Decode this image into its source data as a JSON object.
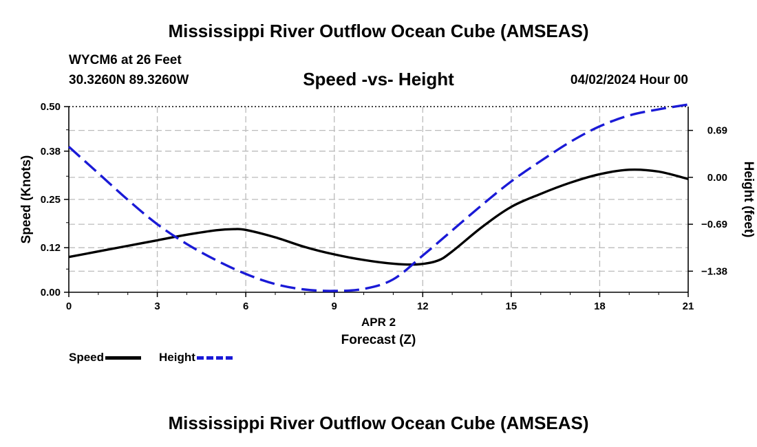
{
  "header": {
    "title": "Mississippi River Outflow Ocean Cube (AMSEAS)",
    "station": "WYCM6 at 26 Feet",
    "coords": "30.3260N  89.3260W",
    "subtitle": "Speed -vs- Height",
    "datetime": "04/02/2024 Hour 00"
  },
  "footer": {
    "title": "Mississippi River Outflow Ocean Cube (AMSEAS)"
  },
  "legend": {
    "items": [
      {
        "label": "Speed",
        "color": "#000000",
        "style": "solid"
      },
      {
        "label": "Height",
        "color": "#1a1ad6",
        "style": "dashed"
      }
    ]
  },
  "chart_data": {
    "type": "line",
    "title": "Speed -vs- Height",
    "xlabel": "Forecast (Z)",
    "xlabel_date": "APR 2",
    "ylabel_left": "Speed (Knots)",
    "ylabel_right": "Height (feet)",
    "xlim": [
      0,
      21
    ],
    "x_ticks": [
      "0",
      "3",
      "6",
      "9",
      "12",
      "15",
      "18",
      "21"
    ],
    "ylim_left": [
      0.0,
      0.5
    ],
    "y_ticks_left": [
      "0.00",
      "0.12",
      "0.25",
      "0.38",
      "0.50"
    ],
    "ylim_right": [
      -1.69,
      1.04
    ],
    "y_ticks_right": [
      {
        "label": "0.69",
        "value": 0.69
      },
      {
        "label": "0.00",
        "value": 0.0
      },
      {
        "label": "−0.69",
        "value": -0.69
      },
      {
        "label": "−1.38",
        "value": -1.38
      }
    ],
    "grid": true,
    "series": [
      {
        "name": "Speed",
        "axis": "left",
        "color": "#000000",
        "x": [
          0,
          1,
          2,
          3,
          4,
          5,
          5.6,
          6,
          7,
          8,
          9,
          10,
          11,
          11.8,
          12.5,
          13,
          14,
          15,
          16,
          17,
          18,
          19,
          20,
          21
        ],
        "values": [
          0.095,
          0.11,
          0.125,
          0.14,
          0.155,
          0.167,
          0.17,
          0.168,
          0.148,
          0.122,
          0.102,
          0.087,
          0.077,
          0.075,
          0.085,
          0.11,
          0.175,
          0.23,
          0.265,
          0.295,
          0.318,
          0.33,
          0.325,
          0.305
        ]
      },
      {
        "name": "Height",
        "axis": "right",
        "color": "#1a1ad6",
        "x": [
          0,
          1,
          2,
          3,
          4,
          5,
          6,
          7,
          8,
          9,
          10,
          11,
          12,
          13,
          14,
          15,
          16,
          17,
          18,
          19,
          20,
          21
        ],
        "values": [
          0.45,
          0.06,
          -0.33,
          -0.69,
          -0.98,
          -1.22,
          -1.42,
          -1.57,
          -1.65,
          -1.67,
          -1.64,
          -1.5,
          -1.15,
          -0.78,
          -0.41,
          -0.06,
          0.24,
          0.52,
          0.75,
          0.91,
          1.0,
          1.07
        ]
      }
    ]
  }
}
